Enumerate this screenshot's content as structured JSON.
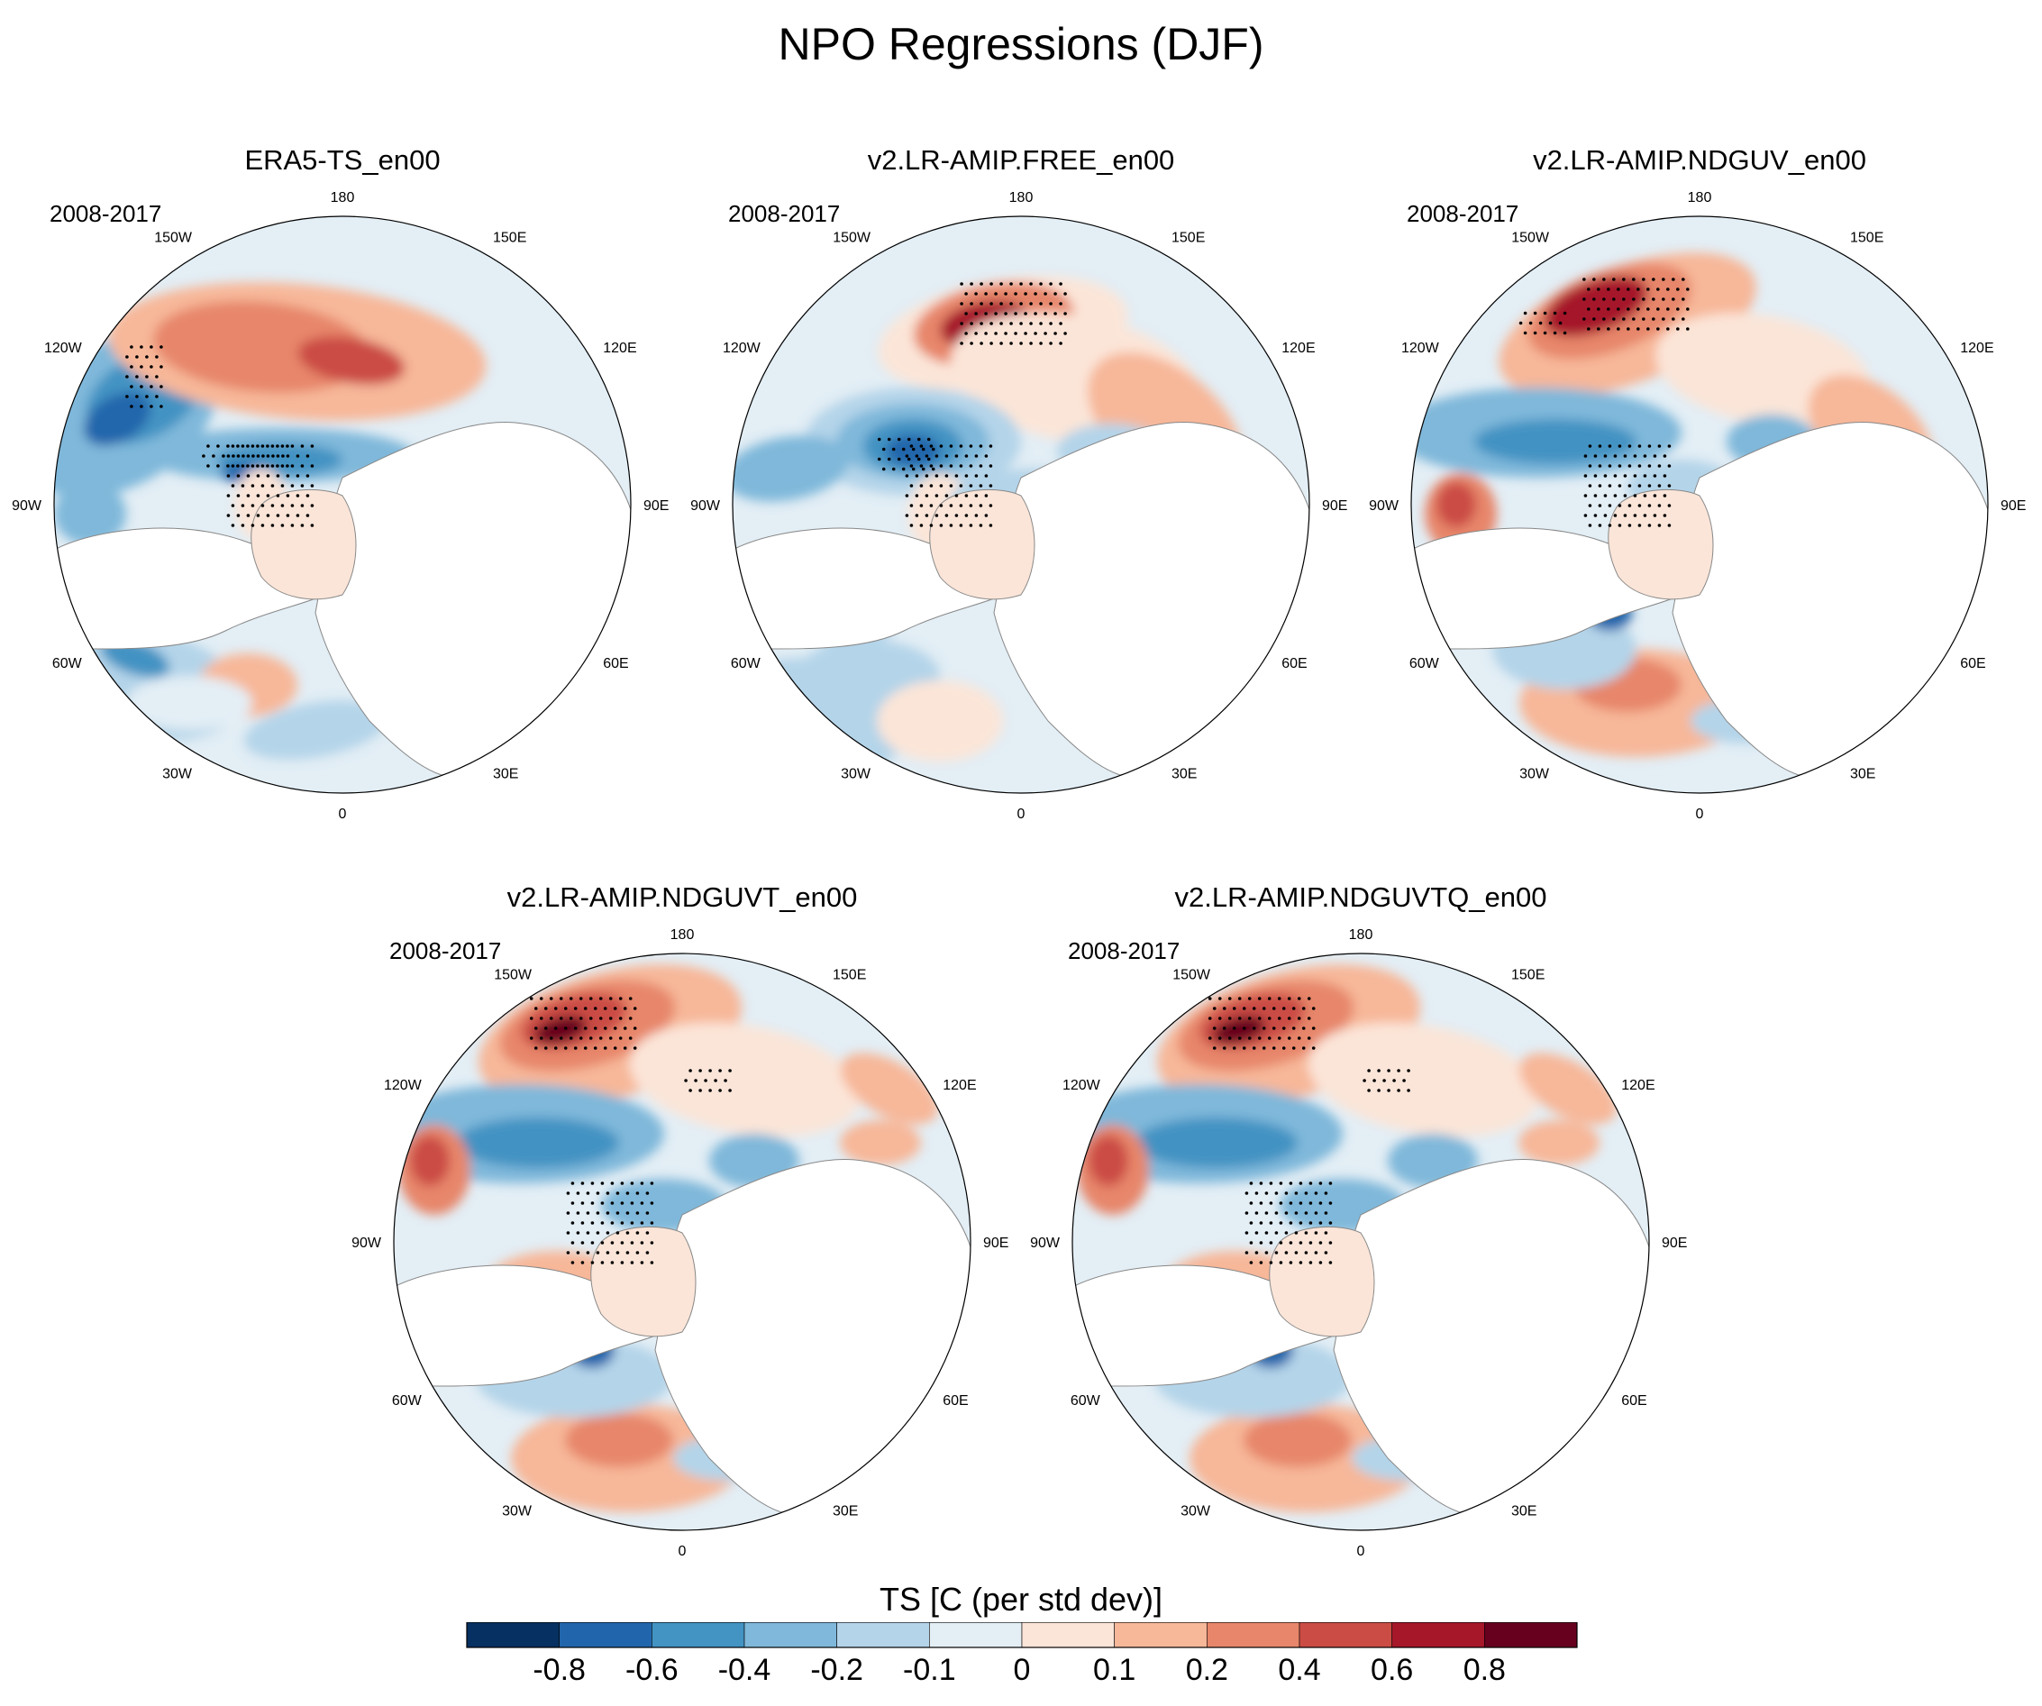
{
  "figure": {
    "title": "NPO Regressions (DJF)"
  },
  "chart_data": {
    "type": "heatmap",
    "projection": "north polar stereographic",
    "variable": "TS",
    "season": "DJF",
    "period": "2008-2017",
    "stippling": "significance",
    "longitude_labels": [
      "180",
      "150E",
      "120E",
      "90E",
      "60E",
      "30E",
      "0",
      "30W",
      "60W",
      "90W",
      "120W",
      "150W"
    ],
    "panels": [
      {
        "title": "ERA5-TS_en00",
        "period": "2008-2017"
      },
      {
        "title": "v2.LR-AMIP.FREE_en00",
        "period": "2008-2017"
      },
      {
        "title": "v2.LR-AMIP.NDGUV_en00",
        "period": "2008-2017"
      },
      {
        "title": "v2.LR-AMIP.NDGUVT_en00",
        "period": "2008-2017"
      },
      {
        "title": "v2.LR-AMIP.NDGUVTQ_en00",
        "period": "2008-2017"
      }
    ],
    "colorbar": {
      "title": "TS [C (per std dev)]",
      "levels": [
        "-0.8",
        "-0.6",
        "-0.4",
        "-0.2",
        "-0.1",
        "0",
        "0.1",
        "0.2",
        "0.4",
        "0.6",
        "0.8"
      ],
      "colors": [
        "#053061",
        "#2166ac",
        "#4393c3",
        "#7fb8da",
        "#b4d4e9",
        "#e3eef5",
        "#fbe5d8",
        "#f7b799",
        "#e7866a",
        "#cb4c44",
        "#a6172a",
        "#67001f"
      ]
    }
  }
}
